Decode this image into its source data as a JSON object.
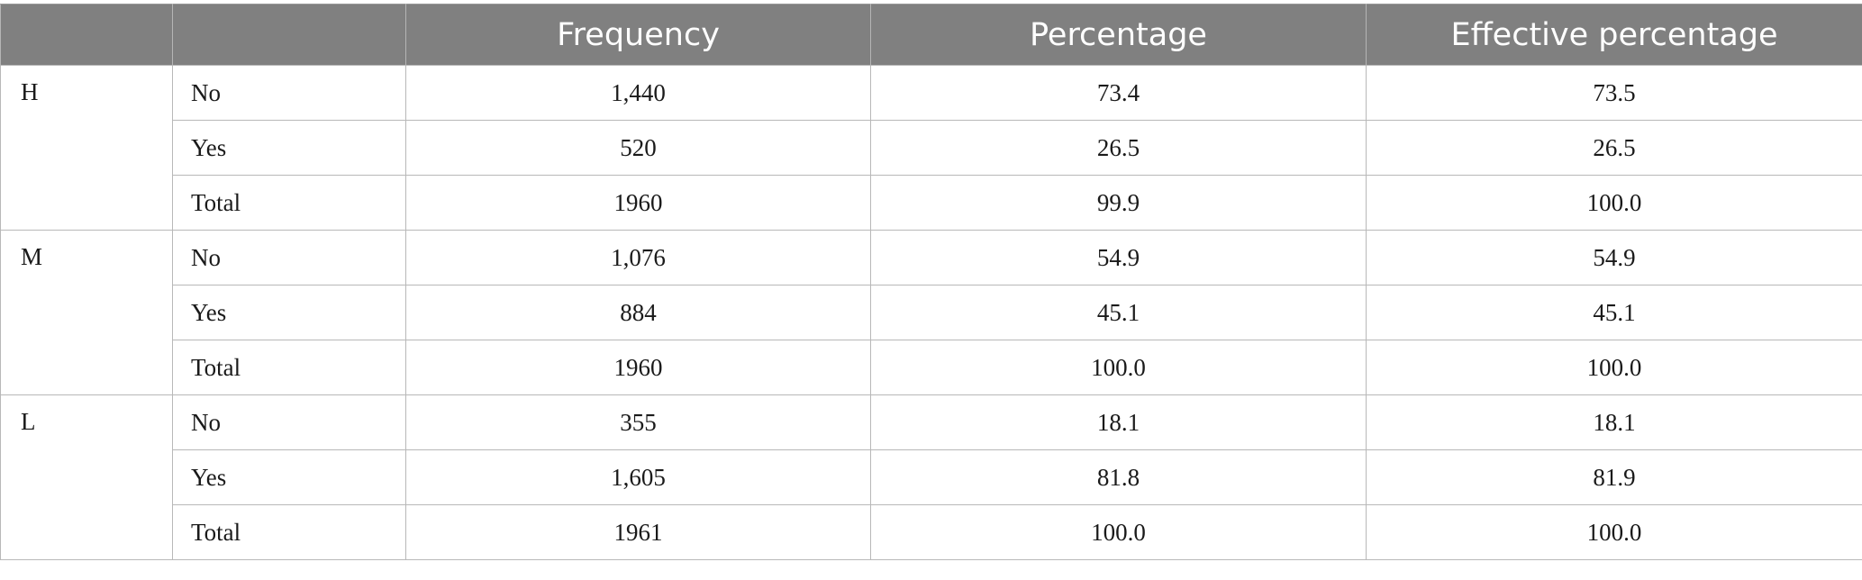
{
  "header": {
    "col1": "",
    "col2": "",
    "frequency": "Frequency",
    "percentage": "Percentage",
    "effective_percentage": "Effective percentage"
  },
  "groups": [
    {
      "label": "H",
      "rows": [
        {
          "category": "No",
          "frequency": "1,440",
          "percentage": "73.4",
          "effective": "73.5"
        },
        {
          "category": "Yes",
          "frequency": "520",
          "percentage": "26.5",
          "effective": "26.5"
        },
        {
          "category": "Total",
          "frequency": "1960",
          "percentage": "99.9",
          "effective": "100.0"
        }
      ]
    },
    {
      "label": "M",
      "rows": [
        {
          "category": "No",
          "frequency": "1,076",
          "percentage": "54.9",
          "effective": "54.9"
        },
        {
          "category": "Yes",
          "frequency": "884",
          "percentage": "45.1",
          "effective": "45.1"
        },
        {
          "category": "Total",
          "frequency": "1960",
          "percentage": "100.0",
          "effective": "100.0"
        }
      ]
    },
    {
      "label": "L",
      "rows": [
        {
          "category": "No",
          "frequency": "355",
          "percentage": "18.1",
          "effective": "18.1"
        },
        {
          "category": "Yes",
          "frequency": "1,605",
          "percentage": "81.8",
          "effective": "81.9"
        },
        {
          "category": "Total",
          "frequency": "1961",
          "percentage": "100.0",
          "effective": "100.0"
        }
      ]
    }
  ],
  "colors": {
    "header_bg": "#808080",
    "header_text": "#ffffff",
    "border": "#b8b8b8"
  }
}
